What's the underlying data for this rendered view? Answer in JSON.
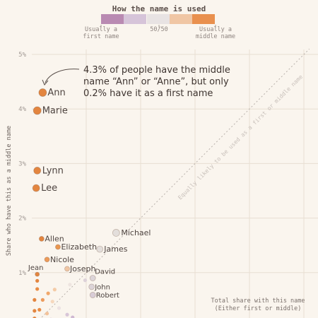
{
  "chart_data": {
    "type": "scatter",
    "legend": {
      "title": "How the name is used",
      "labels": [
        "Usually a\nfirst name",
        "50/50",
        "Usually a\nmiddle name"
      ],
      "colors": [
        "#b98ab2",
        "#d6c4d9",
        "#e8e3e3",
        "#f0c6a4",
        "#e9904e"
      ],
      "placement": "top-center"
    },
    "yaxis": {
      "label": "Share who have this as a middle name",
      "ticks": [
        "1%",
        "2%",
        "3%",
        "4%",
        "5%"
      ],
      "tick_values": [
        1,
        2,
        3,
        4,
        5
      ],
      "ylim": [
        0,
        5.1
      ]
    },
    "annotation": {
      "text_lines": [
        "4.3% of people have the middle",
        "name “Ann” or “Anne”, but only",
        "0.2% have it as a first name"
      ]
    },
    "diagonal_label": "Equally likely to be used as a first or middle name",
    "size_legend": {
      "title_lines": [
        "Total share with this name",
        "(Either first or middle)"
      ]
    },
    "points": [
      {
        "name": "Ann",
        "x": 0.2,
        "y": 4.3,
        "color": "#e3853f",
        "labeled": true
      },
      {
        "name": "Marie",
        "x": 0.1,
        "y": 3.97,
        "color": "#e3853f",
        "labeled": true
      },
      {
        "name": "Lynn",
        "x": 0.1,
        "y": 2.87,
        "color": "#e3853f",
        "labeled": true
      },
      {
        "name": "Lee",
        "x": 0.08,
        "y": 2.55,
        "color": "#e3853f",
        "labeled": true
      },
      {
        "name": "Michael",
        "x": 1.55,
        "y": 1.73,
        "color": "#e3dedb",
        "labeled": true
      },
      {
        "name": "Allen",
        "x": 0.18,
        "y": 1.62,
        "color": "#e3853f",
        "labeled": true
      },
      {
        "name": "Elizabeth",
        "x": 0.48,
        "y": 1.47,
        "color": "#e9964f",
        "labeled": true
      },
      {
        "name": "James",
        "x": 1.25,
        "y": 1.43,
        "color": "#e3dedb",
        "labeled": true
      },
      {
        "name": "Nicole",
        "x": 0.28,
        "y": 1.24,
        "color": "#ec9a59",
        "labeled": true
      },
      {
        "name": "Joseph",
        "x": 0.65,
        "y": 1.07,
        "color": "#f0c6a4",
        "labeled": true
      },
      {
        "name": "Jean",
        "x": 0.1,
        "y": 0.97,
        "color": "#e3853f",
        "labeled": true
      },
      {
        "name": "David",
        "x": 1.12,
        "y": 0.9,
        "color": "#dcd4d8",
        "labeled": true
      },
      {
        "name": "John",
        "x": 1.1,
        "y": 0.74,
        "color": "#dcd4d8",
        "labeled": true
      },
      {
        "name": "Robert",
        "x": 1.12,
        "y": 0.59,
        "color": "#d9cdd7",
        "labeled": true
      },
      {
        "name": "",
        "x": 0.1,
        "y": 0.85,
        "color": "#e3853f",
        "labeled": false
      },
      {
        "name": "",
        "x": 0.1,
        "y": 0.7,
        "color": "#e88c45",
        "labeled": false
      },
      {
        "name": "",
        "x": 0.3,
        "y": 0.62,
        "color": "#f0a76a",
        "labeled": false
      },
      {
        "name": "",
        "x": 0.42,
        "y": 0.69,
        "color": "#f4cba6",
        "labeled": false
      },
      {
        "name": "",
        "x": 0.7,
        "y": 0.78,
        "color": "#eee5e0",
        "labeled": false
      },
      {
        "name": "",
        "x": 0.98,
        "y": 0.86,
        "color": "#ddd2d9",
        "labeled": false
      },
      {
        "name": "",
        "x": 0.05,
        "y": 0.5,
        "color": "#e3853f",
        "labeled": false
      },
      {
        "name": "",
        "x": 0.2,
        "y": 0.5,
        "color": "#ec9b5d",
        "labeled": false
      },
      {
        "name": "",
        "x": 0.38,
        "y": 0.47,
        "color": "#f6d8bd",
        "labeled": false
      },
      {
        "name": "",
        "x": 0.5,
        "y": 0.35,
        "color": "#ece2e2",
        "labeled": false
      },
      {
        "name": "",
        "x": 0.05,
        "y": 0.3,
        "color": "#e3853f",
        "labeled": false
      },
      {
        "name": "",
        "x": 0.14,
        "y": 0.32,
        "color": "#e88c45",
        "labeled": false
      },
      {
        "name": "",
        "x": 0.28,
        "y": 0.25,
        "color": "#f3c29a",
        "labeled": false
      },
      {
        "name": "",
        "x": 0.65,
        "y": 0.23,
        "color": "#d8c6d8",
        "labeled": false
      },
      {
        "name": "",
        "x": 0.75,
        "y": 0.18,
        "color": "#cfb8d2",
        "labeled": false
      },
      {
        "name": "",
        "x": 0.05,
        "y": 0.16,
        "color": "#e3853f",
        "labeled": false
      },
      {
        "name": "",
        "x": 0.12,
        "y": 0.13,
        "color": "#e88c45",
        "labeled": false
      },
      {
        "name": "",
        "x": 0.22,
        "y": 0.1,
        "color": "#eec7b8",
        "labeled": false
      },
      {
        "name": "",
        "x": 0.35,
        "y": 0.14,
        "color": "#d9bfd8",
        "labeled": false
      },
      {
        "name": "",
        "x": 0.5,
        "y": 0.13,
        "color": "#c9a6c7",
        "labeled": false
      },
      {
        "name": "",
        "x": 0.62,
        "y": 0.08,
        "color": "#bf96bd",
        "labeled": false
      },
      {
        "name": "",
        "x": 0.8,
        "y": 0.05,
        "color": "#c9a6c7",
        "labeled": false
      },
      {
        "name": "",
        "x": 0.02,
        "y": 0.04,
        "color": "#e3853f",
        "labeled": false
      },
      {
        "name": "",
        "x": 0.16,
        "y": 0.03,
        "color": "#f0b28a",
        "labeled": false
      },
      {
        "name": "",
        "x": 0.45,
        "y": 0.02,
        "color": "#c39ac0",
        "labeled": false
      }
    ]
  }
}
